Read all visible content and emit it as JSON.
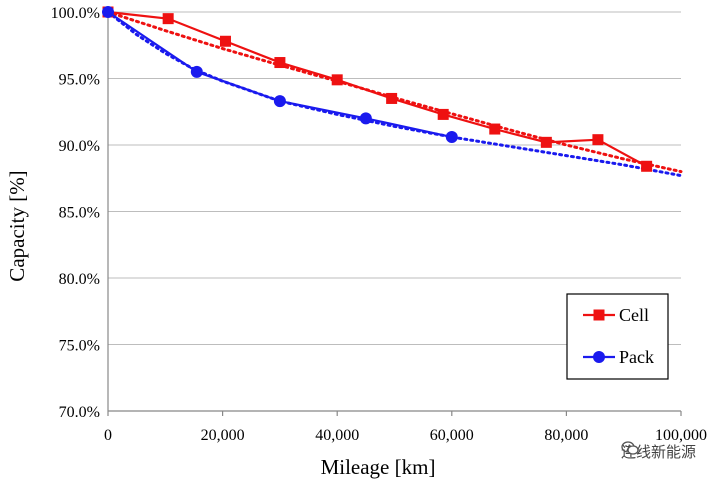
{
  "chart_data": {
    "type": "line",
    "xlabel": "Mileage  [km]",
    "ylabel": "Capacity [%]",
    "xlim": [
      0,
      100000
    ],
    "ylim": [
      70,
      100
    ],
    "x_ticks": [
      0,
      20000,
      40000,
      60000,
      80000,
      100000
    ],
    "x_tick_labels": [
      "0",
      "20,000",
      "40,000",
      "60,000",
      "80,000",
      "100,000"
    ],
    "y_ticks": [
      70,
      75,
      80,
      85,
      90,
      95,
      100
    ],
    "y_tick_labels": [
      "70.0%",
      "75.0%",
      "80.0%",
      "85.0%",
      "90.0%",
      "95.0%",
      "100.0%"
    ],
    "grid": "horizontal",
    "legend_position": "bottom-right",
    "series": [
      {
        "name": "Cell",
        "color": "#ee1111",
        "marker": "square",
        "x": [
          0,
          10500,
          20500,
          30000,
          40000,
          49500,
          58500,
          67500,
          76500,
          85500,
          94000
        ],
        "y": [
          100.0,
          99.5,
          97.8,
          96.2,
          94.9,
          93.5,
          92.3,
          91.2,
          90.2,
          90.4,
          88.4
        ]
      },
      {
        "name": "Pack",
        "color": "#1a1aee",
        "marker": "circle",
        "x": [
          0,
          15500,
          30000,
          45000,
          60000
        ],
        "y": [
          100.0,
          95.5,
          93.3,
          92.0,
          90.6
        ]
      }
    ],
    "trendlines": [
      {
        "series": "Cell",
        "color": "#ee1111",
        "style": "dotted",
        "x": [
          0,
          10000,
          20000,
          30000,
          40000,
          50000,
          60000,
          70000,
          80000,
          90000,
          100000
        ],
        "y": [
          100.0,
          98.6,
          97.25,
          96.0,
          94.8,
          93.55,
          92.35,
          91.15,
          90.0,
          88.95,
          88.0
        ]
      },
      {
        "series": "Pack",
        "color": "#1a1aee",
        "style": "dotted",
        "x": [
          0,
          5000,
          10000,
          15000,
          20000,
          30000,
          40000,
          50000,
          60000,
          70000,
          80000,
          90000,
          100000
        ],
        "y": [
          100.0,
          98.3,
          96.9,
          95.7,
          94.8,
          93.3,
          92.3,
          91.4,
          90.6,
          89.9,
          89.2,
          88.5,
          87.7
        ]
      }
    ]
  },
  "watermark": {
    "text": "连线新能源",
    "icon": "wechat-icon"
  }
}
